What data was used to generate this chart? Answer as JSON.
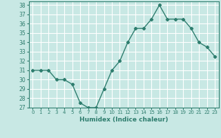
{
  "x": [
    0,
    1,
    2,
    3,
    4,
    5,
    6,
    7,
    8,
    9,
    10,
    11,
    12,
    13,
    14,
    15,
    16,
    17,
    18,
    19,
    20,
    21,
    22,
    23
  ],
  "y": [
    31,
    31,
    31,
    30,
    30,
    29.5,
    27.5,
    27,
    27,
    29,
    31,
    32,
    34,
    35.5,
    35.5,
    36.5,
    38,
    36.5,
    36.5,
    36.5,
    35.5,
    34,
    33.5,
    32.5
  ],
  "xlabel": "Humidex (Indice chaleur)",
  "xlim": [
    -0.5,
    23.5
  ],
  "ylim": [
    27,
    38.4
  ],
  "yticks": [
    27,
    28,
    29,
    30,
    31,
    32,
    33,
    34,
    35,
    36,
    37,
    38
  ],
  "xticks": [
    0,
    1,
    2,
    3,
    4,
    5,
    6,
    7,
    8,
    9,
    10,
    11,
    12,
    13,
    14,
    15,
    16,
    17,
    18,
    19,
    20,
    21,
    22,
    23
  ],
  "xtick_labels": [
    "0",
    "1",
    "2",
    "3",
    "4",
    "5",
    "6",
    "7",
    "8",
    "9",
    "10",
    "11",
    "12",
    "13",
    "14",
    "15",
    "16",
    "17",
    "18",
    "19",
    "20",
    "21",
    "22",
    "23"
  ],
  "line_color": "#2e7d6e",
  "marker": "D",
  "marker_size": 2.2,
  "line_width": 1.0,
  "bg_color": "#c8e8e4",
  "grid_color": "#ffffff",
  "tick_color": "#2e7d6e",
  "label_color": "#2e7d6e",
  "axis_color": "#2e7d6e"
}
